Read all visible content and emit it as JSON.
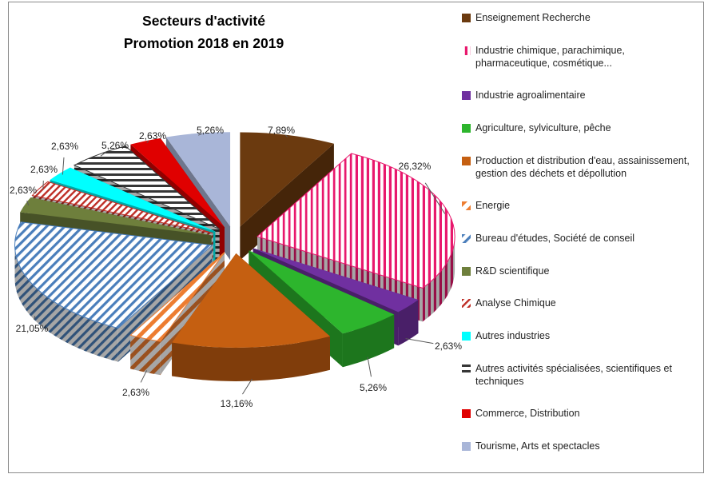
{
  "title": {
    "line1": "Secteurs d'activité",
    "line2": "Promotion 2018 en 2019"
  },
  "frame": {
    "border_color": "#8a8a8a",
    "background": "#ffffff"
  },
  "chart_data": {
    "type": "pie",
    "style": "3d-exploded",
    "unit": "%",
    "title": "Secteurs d'activité Promotion 2018 en 2019",
    "legend_position": "right",
    "start_angle_deg": 0,
    "direction": "clockwise",
    "slices": [
      {
        "label": "Enseignement Recherche",
        "value": 7.89,
        "display": "7,89%",
        "color": "#6B3A0F",
        "pattern": "none"
      },
      {
        "label": "Industrie chimique, parachimique, pharmaceutique, cosmétique...",
        "label_lines": [
          "Industrie chimique, parachimique,",
          "pharmaceutique, cosmétique..."
        ],
        "value": 26.32,
        "display": "26,32%",
        "color": "#E8186D",
        "pattern": "stripes-vertical",
        "pattern_bg": "#FFFFFF"
      },
      {
        "label": "Industrie agroalimentaire",
        "value": 2.63,
        "display": "2,63%",
        "color": "#7030A0",
        "pattern": "none"
      },
      {
        "label": "Agriculture, sylviculture, pêche",
        "value": 5.26,
        "display": "5,26%",
        "color": "#2DB52D",
        "pattern": "none"
      },
      {
        "label": "Production et distribution d'eau, assainissement, gestion des déchets et dépollution",
        "label_lines": [
          "Production et distribution d'eau, assainissement,",
          "gestion des déchets et dépollution"
        ],
        "value": 13.16,
        "display": "13,16%",
        "color": "#C55F11",
        "pattern": "none"
      },
      {
        "label": "Energie",
        "value": 2.63,
        "display": "2,63%",
        "color": "#ED7D31",
        "pattern": "stripes-diagonal-wide",
        "pattern_bg": "#FFFFFF"
      },
      {
        "label": "Bureau d'études, Société de conseil",
        "value": 21.05,
        "display": "21,05%",
        "color": "#4A7EBB",
        "pattern": "stripes-diagonal",
        "pattern_bg": "#FFFFFF"
      },
      {
        "label": "R&D scientifique",
        "value": 2.63,
        "display": "2,63%",
        "color": "#6E7F3C",
        "pattern": "none"
      },
      {
        "label": "Analyse Chimique",
        "value": 2.63,
        "display": "2,63%",
        "color": "#BE2D25",
        "pattern": "stripes-diagonal-thin",
        "pattern_bg": "#FFFFFF"
      },
      {
        "label": "Autres industries",
        "value": 2.63,
        "display": "2,63%",
        "color": "#00FFFF",
        "pattern": "none"
      },
      {
        "label": "Autres activités spécialisées, scientifiques et techniques",
        "label_lines": [
          "Autres activités spécialisées, scientifiques et",
          "techniques"
        ],
        "value": 5.26,
        "display": "5,26%",
        "color": "#363636",
        "pattern": "stripes-horizontal",
        "pattern_bg": "#FFFFFF"
      },
      {
        "label": "Commerce, Distribution",
        "value": 2.63,
        "display": "2,63%",
        "color": "#E00000",
        "pattern": "none"
      },
      {
        "label": "Tourisme, Arts et  spectacles",
        "value": 5.26,
        "display": "5,26%",
        "color": "#A9B6D8",
        "pattern": "none"
      }
    ]
  }
}
